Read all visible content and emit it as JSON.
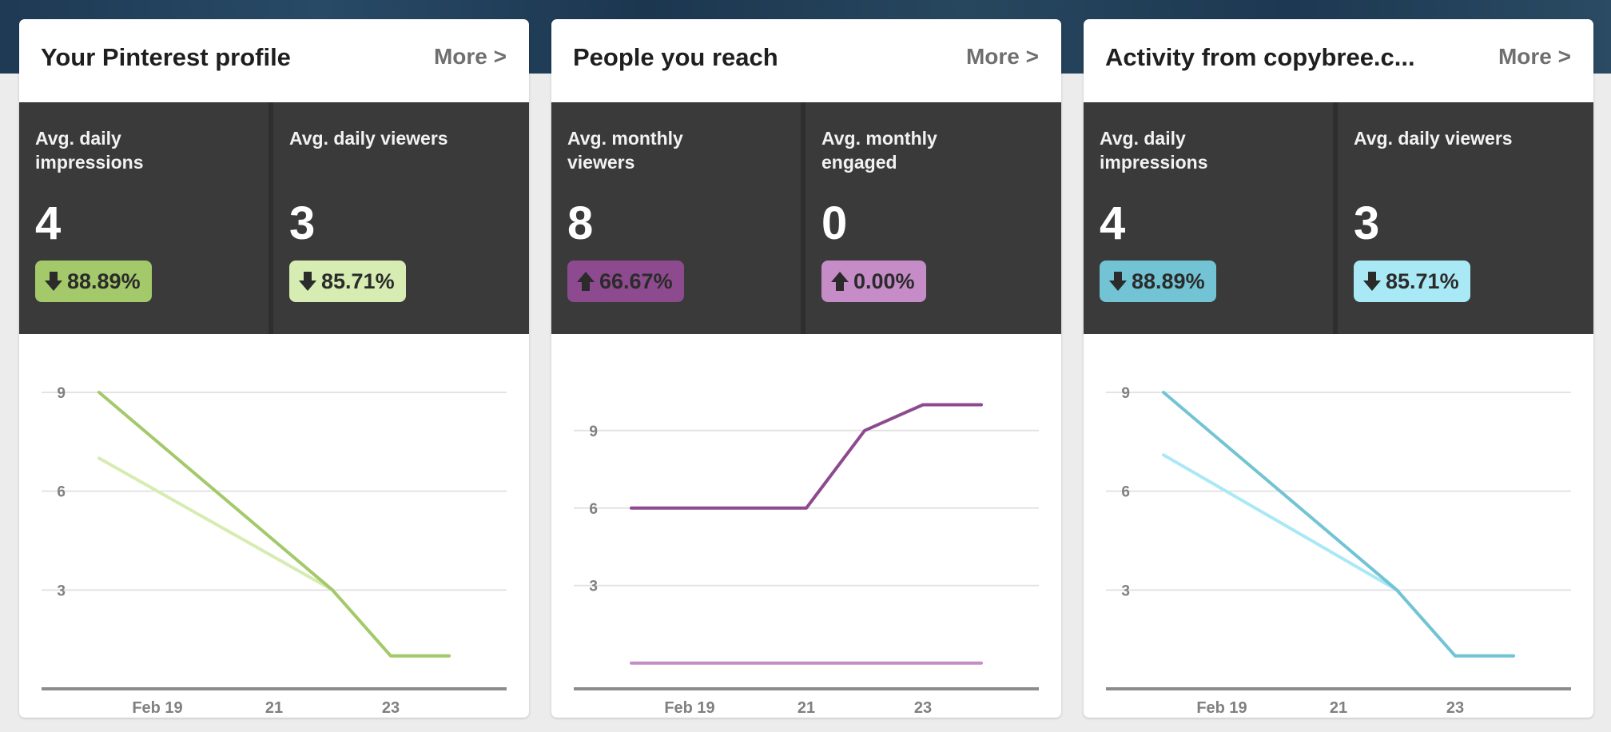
{
  "cards": [
    {
      "title": "Your Pinterest profile",
      "more": "More >",
      "stats": [
        {
          "label": "Avg. daily impressions",
          "value": "4",
          "change": "88.89%",
          "direction": "down",
          "badge_color": "#a3c96a"
        },
        {
          "label": "Avg. daily viewers",
          "value": "3",
          "change": "85.71%",
          "direction": "down",
          "badge_color": "#d6ecb2"
        }
      ]
    },
    {
      "title": "People you reach",
      "more": "More >",
      "stats": [
        {
          "label": "Avg. monthly viewers",
          "value": "8",
          "change": "66.67%",
          "direction": "up",
          "badge_color": "#8e4a8e"
        },
        {
          "label": "Avg. monthly engaged",
          "value": "0",
          "change": "0.00%",
          "direction": "up",
          "badge_color": "#c58cc8"
        }
      ]
    },
    {
      "title": "Activity from copybree.c...",
      "more": "More >",
      "stats": [
        {
          "label": "Avg. daily impressions",
          "value": "4",
          "change": "88.89%",
          "direction": "down",
          "badge_color": "#72c4d4"
        },
        {
          "label": "Avg. daily viewers",
          "value": "3",
          "change": "85.71%",
          "direction": "down",
          "badge_color": "#a9e9f5"
        }
      ]
    }
  ],
  "chart_data": [
    {
      "type": "line",
      "x": [
        "Feb 18",
        "Feb 19",
        "Feb 20",
        "Feb 21",
        "Feb 22",
        "Feb 23",
        "Feb 24"
      ],
      "x_tick_labels": [
        "",
        "Feb 19",
        "",
        "21",
        "",
        "23",
        ""
      ],
      "ylim": [
        0,
        9.8
      ],
      "y_ticks": [
        3,
        6,
        9
      ],
      "grid": true,
      "series": [
        {
          "values": [
            9,
            null,
            null,
            null,
            3,
            1,
            1
          ],
          "color": "#a3c96a"
        },
        {
          "values": [
            7,
            null,
            null,
            null,
            3,
            1,
            1
          ],
          "color": "#d6ecb2"
        }
      ]
    },
    {
      "type": "line",
      "x": [
        "Feb 18",
        "Feb 19",
        "Feb 20",
        "Feb 21",
        "Feb 22",
        "Feb 23",
        "Feb 24"
      ],
      "x_tick_labels": [
        "",
        "Feb 19",
        "",
        "21",
        "",
        "23",
        ""
      ],
      "ylim": [
        -1,
        11.5
      ],
      "y_ticks": [
        3,
        6,
        9
      ],
      "grid": true,
      "series": [
        {
          "values": [
            6,
            6,
            6,
            6,
            9,
            10,
            10
          ],
          "color": "#8e4a8e"
        },
        {
          "values": [
            0,
            0,
            0,
            0,
            0,
            0,
            0
          ],
          "color": "#c58cc8"
        }
      ]
    },
    {
      "type": "line",
      "x": [
        "Feb 18",
        "Feb 19",
        "Feb 20",
        "Feb 21",
        "Feb 22",
        "Feb 23",
        "Feb 24"
      ],
      "x_tick_labels": [
        "",
        "Feb 19",
        "",
        "21",
        "",
        "23",
        ""
      ],
      "ylim": [
        0,
        9.8
      ],
      "y_ticks": [
        3,
        6,
        9
      ],
      "grid": true,
      "series": [
        {
          "values": [
            9,
            null,
            null,
            null,
            3,
            1,
            1
          ],
          "color": "#72c4d4"
        },
        {
          "values": [
            7.1,
            null,
            null,
            null,
            3,
            1,
            1
          ],
          "color": "#a9e9f5"
        }
      ]
    }
  ]
}
